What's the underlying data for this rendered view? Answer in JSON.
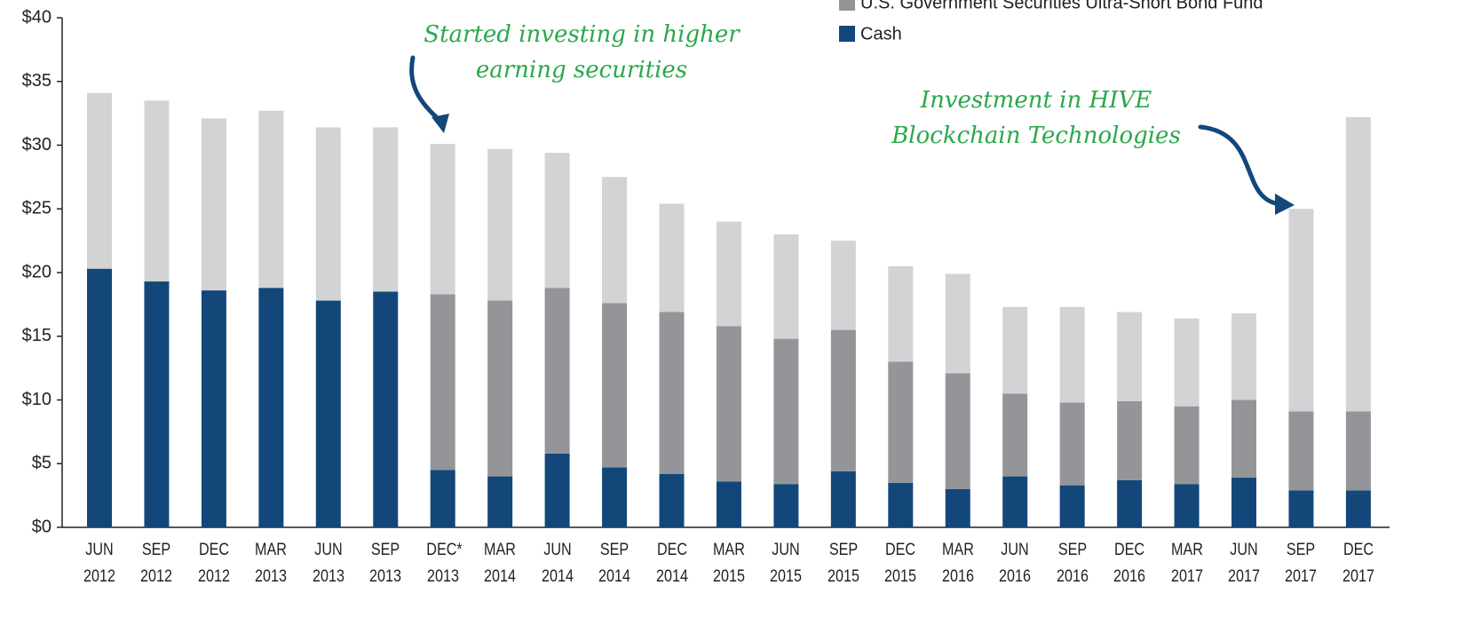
{
  "chart_data": {
    "type": "stacked_bar",
    "categories": [
      "JUN 2012",
      "SEP 2012",
      "DEC 2012",
      "MAR 2013",
      "JUN 2013",
      "SEP 2013",
      "DEC* 2013",
      "MAR 2014",
      "JUN 2014",
      "SEP 2014",
      "DEC 2014",
      "MAR 2015",
      "JUN 2015",
      "SEP 2015",
      "DEC 2015",
      "MAR 2016",
      "JUN 2016",
      "SEP 2016",
      "DEC 2016",
      "MAR 2017",
      "JUN 2017",
      "SEP 2017",
      "DEC 2017"
    ],
    "series": [
      {
        "name": "Cash",
        "color": "#13477a",
        "values": [
          20.3,
          19.3,
          18.6,
          18.8,
          17.8,
          18.5,
          4.5,
          4.0,
          5.8,
          4.7,
          4.2,
          3.6,
          3.4,
          4.4,
          3.5,
          3.0,
          4.0,
          3.3,
          3.7,
          3.4,
          3.9,
          2.9,
          2.9
        ]
      },
      {
        "name": "U.S. Government Securities Ultra-Short Bond Fund",
        "color": "#939598",
        "values": [
          0,
          0,
          0,
          0,
          0,
          0,
          13.8,
          13.8,
          13.0,
          12.9,
          12.7,
          12.2,
          11.4,
          11.1,
          9.5,
          9.1,
          6.5,
          6.5,
          6.2,
          6.1,
          6.1,
          6.2,
          6.2
        ]
      },
      {
        "color": "#d1d3d4",
        "values": [
          13.8,
          14.2,
          13.5,
          13.9,
          13.6,
          12.9,
          11.8,
          11.9,
          10.6,
          9.9,
          8.5,
          8.2,
          8.2,
          7.0,
          7.5,
          7.8,
          6.8,
          7.5,
          7.0,
          6.9,
          6.8,
          15.9,
          23.1
        ]
      }
    ],
    "ylim": [
      0,
      40
    ],
    "yticks": [
      {
        "value": 0,
        "label": "$0"
      },
      {
        "value": 5,
        "label": "$5"
      },
      {
        "value": 10,
        "label": "$10"
      },
      {
        "value": 15,
        "label": "$15"
      },
      {
        "value": 20,
        "label": "$20"
      },
      {
        "value": 25,
        "label": "$25"
      },
      {
        "value": 30,
        "label": "$30"
      },
      {
        "value": 35,
        "label": "$35"
      },
      {
        "value": 40,
        "label": "$40"
      }
    ],
    "annotations": [
      [
        "Started investing in higher",
        "earning securities"
      ],
      [
        "Investment  in HIVE",
        "Blockchain Technologies"
      ]
    ]
  }
}
